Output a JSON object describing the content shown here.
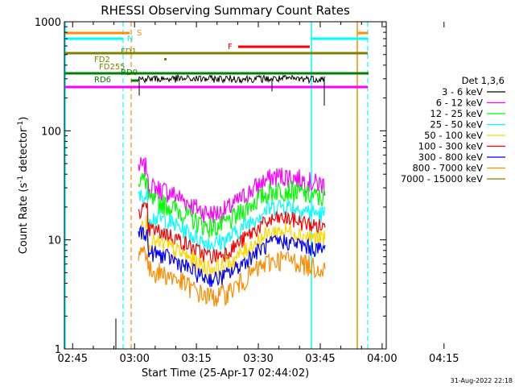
{
  "chart_data": {
    "type": "line",
    "title": "RHESSI Observing Summary Count Rates",
    "xlabel": "Start Time (25-Apr-17 02:44:02)",
    "ylabel_main": "Count Rate (s",
    "ylabel_sup1": "-1",
    "ylabel_mid": " detector",
    "ylabel_sup2": "-1",
    "ylabel_end": ")",
    "yscale": "log",
    "ylim": [
      1,
      1000
    ],
    "xlim_minutes": [
      -1,
      77
    ],
    "x_ticks": [
      {
        "label": "02:45",
        "min": 1
      },
      {
        "label": "03:00",
        "min": 16
      },
      {
        "label": "03:15",
        "min": 31
      },
      {
        "label": "03:30",
        "min": 46
      },
      {
        "label": "03:45",
        "min": 61
      },
      {
        "label": "04:00",
        "min": 76
      },
      {
        "label": "04:15",
        "min": 91
      }
    ],
    "y_ticks": [
      {
        "label": "1",
        "value": 1
      },
      {
        "label": "10",
        "value": 10
      },
      {
        "label": "100",
        "value": 100
      },
      {
        "label": "1000",
        "value": 1000
      }
    ],
    "legend_title": "Det 1,3,6",
    "series": [
      {
        "name": "3 - 6 keV",
        "color": "#000000"
      },
      {
        "name": "6 - 12 keV",
        "color": "#ff00ff"
      },
      {
        "name": "12 - 25 keV",
        "color": "#00ff00"
      },
      {
        "name": "25 - 50 keV",
        "color": "#00ffff"
      },
      {
        "name": "50 - 100 keV",
        "color": "#ffd700"
      },
      {
        "name": "100 - 300 keV",
        "color": "#ff0000"
      },
      {
        "name": "300 - 800 keV",
        "color": "#0000ff"
      },
      {
        "name": "800 - 7000 keV",
        "color": "#ff8c00"
      },
      {
        "name": "7000 - 15000 keV",
        "color": "#808000"
      }
    ],
    "flag_labels": {
      "s": "S",
      "n": "N",
      "f": "F",
      "fd1": "FD1",
      "fd2": "FD2",
      "fd255": "FD255",
      "rd0": "RD0",
      "rd6": "RD6"
    },
    "footer_date": "31-Aug-2022 22:18",
    "colors": {
      "saa": "#ff8c00",
      "night": "#00ffff",
      "flare": "#ff0000",
      "decimation": "#808000",
      "rate_decimation": "#008000",
      "attenuator": "#ff00ff"
    }
  }
}
